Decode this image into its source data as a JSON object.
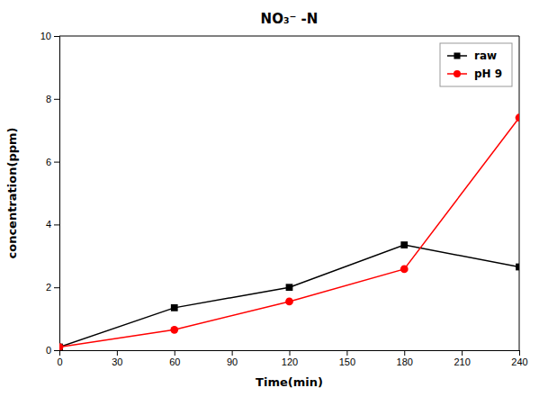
{
  "chart_data": {
    "type": "line",
    "title": "NO₃⁻ -N",
    "x_label": "Time(min)",
    "y_label": "concentration(ppm)",
    "x": [
      0,
      60,
      120,
      180,
      240
    ],
    "series": [
      {
        "name": "raw",
        "color": "#000000",
        "marker": "square",
        "values": [
          0.1,
          1.35,
          2.0,
          3.35,
          2.65
        ]
      },
      {
        "name": "pH 9",
        "color": "#ff0000",
        "marker": "circle",
        "values": [
          0.1,
          0.65,
          1.55,
          2.58,
          7.4
        ]
      }
    ],
    "xlim": [
      0,
      240
    ],
    "ylim": [
      0,
      10
    ],
    "xticks": [
      0,
      30,
      60,
      90,
      120,
      150,
      180,
      210,
      240
    ],
    "yticks": [
      0,
      2,
      4,
      6,
      8,
      10
    ],
    "grid": false,
    "legend": "upper-right"
  }
}
